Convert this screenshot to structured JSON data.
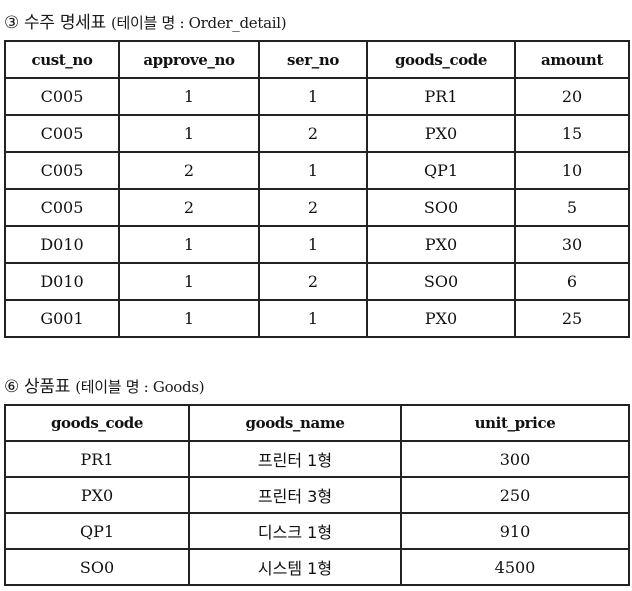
{
  "order_detail": {
    "heading_prefix": "③ 수주 명세표",
    "heading_suffix": "(테이블 명 : Order_detail)",
    "columns": [
      "cust_no",
      "approve_no",
      "ser_no",
      "goods_code",
      "amount"
    ],
    "rows": [
      [
        "C005",
        "1",
        "1",
        "PR1",
        "20"
      ],
      [
        "C005",
        "1",
        "2",
        "PX0",
        "15"
      ],
      [
        "C005",
        "2",
        "1",
        "QP1",
        "10"
      ],
      [
        "C005",
        "2",
        "2",
        "SO0",
        "5"
      ],
      [
        "D010",
        "1",
        "1",
        "PX0",
        "30"
      ],
      [
        "D010",
        "1",
        "2",
        "SO0",
        "6"
      ],
      [
        "G001",
        "1",
        "1",
        "PX0",
        "25"
      ]
    ]
  },
  "goods": {
    "heading_prefix": "⑥ 상품표",
    "heading_suffix": "(테이블 명 : Goods)",
    "columns": [
      "goods_code",
      "goods_name",
      "unit_price"
    ],
    "rows": [
      [
        "PR1",
        "프린터 1형",
        "300"
      ],
      [
        "PX0",
        "프린터 3형",
        "250"
      ],
      [
        "QP1",
        "디스크 1형",
        "910"
      ],
      [
        "SO0",
        "시스템 1형",
        "4500"
      ]
    ]
  }
}
